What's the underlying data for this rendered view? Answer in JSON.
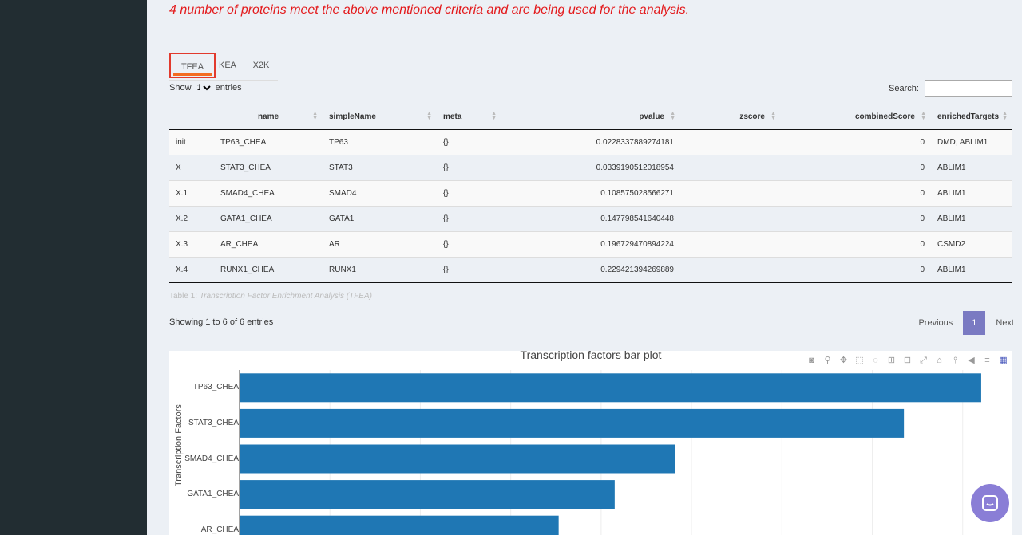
{
  "notice": "4 number of proteins meet the above mentioned criteria and are being used for the analysis.",
  "tabs": [
    "TFEA",
    "KEA",
    "X2K"
  ],
  "length": {
    "show": "Show",
    "value": "10",
    "entries": "entries"
  },
  "search": {
    "label": "Search:",
    "value": ""
  },
  "table": {
    "headers": [
      "name",
      "simpleName",
      "meta",
      "pvalue",
      "zscore",
      "combinedScore",
      "enrichedTargets"
    ],
    "rows": [
      [
        "init",
        "TP63_CHEA",
        "TP63",
        "{}",
        "0.0228337889274181",
        "",
        "0",
        "DMD, ABLIM1"
      ],
      [
        "X",
        "STAT3_CHEA",
        "STAT3",
        "{}",
        "0.0339190512018954",
        "",
        "0",
        "ABLIM1"
      ],
      [
        "X.1",
        "SMAD4_CHEA",
        "SMAD4",
        "{}",
        "0.108575028566271",
        "",
        "0",
        "ABLIM1"
      ],
      [
        "X.2",
        "GATA1_CHEA",
        "GATA1",
        "{}",
        "0.147798541640448",
        "",
        "0",
        "ABLIM1"
      ],
      [
        "X.3",
        "AR_CHEA",
        "AR",
        "{}",
        "0.196729470894224",
        "",
        "0",
        "CSMD2"
      ],
      [
        "X.4",
        "RUNX1_CHEA",
        "RUNX1",
        "{}",
        "0.229421394269889",
        "",
        "0",
        "ABLIM1"
      ]
    ]
  },
  "caption": {
    "prefix": "Table 1: ",
    "text": "Transcription Factor Enrichment Analysis (TFEA)"
  },
  "info": "Showing 1 to 6 of 6 entries",
  "pagination": {
    "previous": "Previous",
    "page": "1",
    "next": "Next"
  },
  "chart_data": {
    "type": "bar",
    "orientation": "horizontal",
    "title": "Transcription factors bar plot",
    "ylabel": "Transcription Factors",
    "categories": [
      "TP63_CHEA",
      "STAT3_CHEA",
      "SMAD4_CHEA",
      "GATA1_CHEA",
      "AR_CHEA"
    ],
    "values": [
      1.641,
      1.47,
      0.964,
      0.83,
      0.706
    ],
    "xlim": [
      0,
      1.71
    ],
    "color": "#1f77b4"
  },
  "modebar_icons": [
    "camera-icon",
    "zoom-icon",
    "pan-icon",
    "box-select-icon",
    "lasso-icon",
    "zoom-in-icon",
    "zoom-out-icon",
    "autoscale-icon",
    "reset-axes-icon",
    "spike-lines-icon",
    "hover-closest-icon",
    "hover-compare-icon",
    "plotly-logo-icon"
  ],
  "colors": {
    "sidebar": "#222d32",
    "notice": "#e31a1c",
    "active_tab_underline": "#f36c21",
    "page_button": "#7a7ac2",
    "bar": "#1f77b4",
    "chat": "#8a7ed6"
  }
}
